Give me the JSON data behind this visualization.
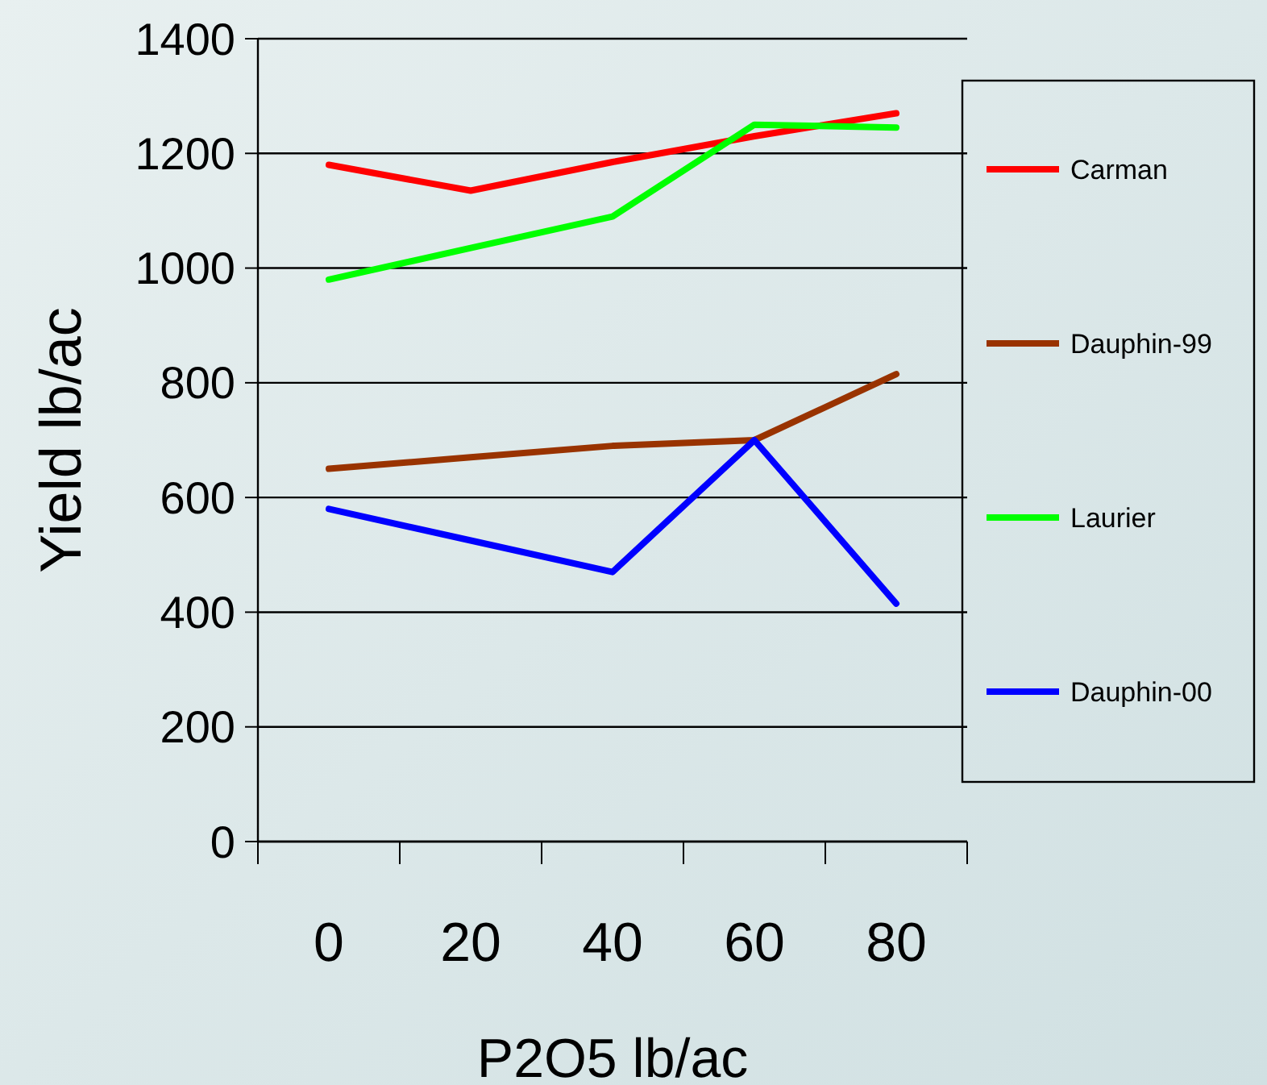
{
  "chart_data": {
    "type": "line",
    "xlabel": "P2O5 lb/ac",
    "ylabel": "Yield lb/ac",
    "categories": [
      "0",
      "20",
      "40",
      "60",
      "80"
    ],
    "series": [
      {
        "name": "Carman",
        "color": "#ff0000",
        "values": [
          1180,
          1135,
          1185,
          1230,
          1270
        ]
      },
      {
        "name": "Dauphin-99",
        "color": "#993300",
        "values": [
          650,
          670,
          690,
          700,
          815
        ]
      },
      {
        "name": "Laurier",
        "color": "#00ff00",
        "values": [
          980,
          1035,
          1090,
          1250,
          1245
        ]
      },
      {
        "name": "Dauphin-00",
        "color": "#0000ff",
        "values": [
          580,
          525,
          470,
          700,
          415
        ]
      }
    ],
    "ylim": [
      0,
      1400
    ],
    "yticks": [
      0,
      200,
      400,
      600,
      800,
      1000,
      1200,
      1400
    ],
    "grid": "y",
    "legend": "right",
    "marker": "none",
    "line_style": "solid"
  }
}
